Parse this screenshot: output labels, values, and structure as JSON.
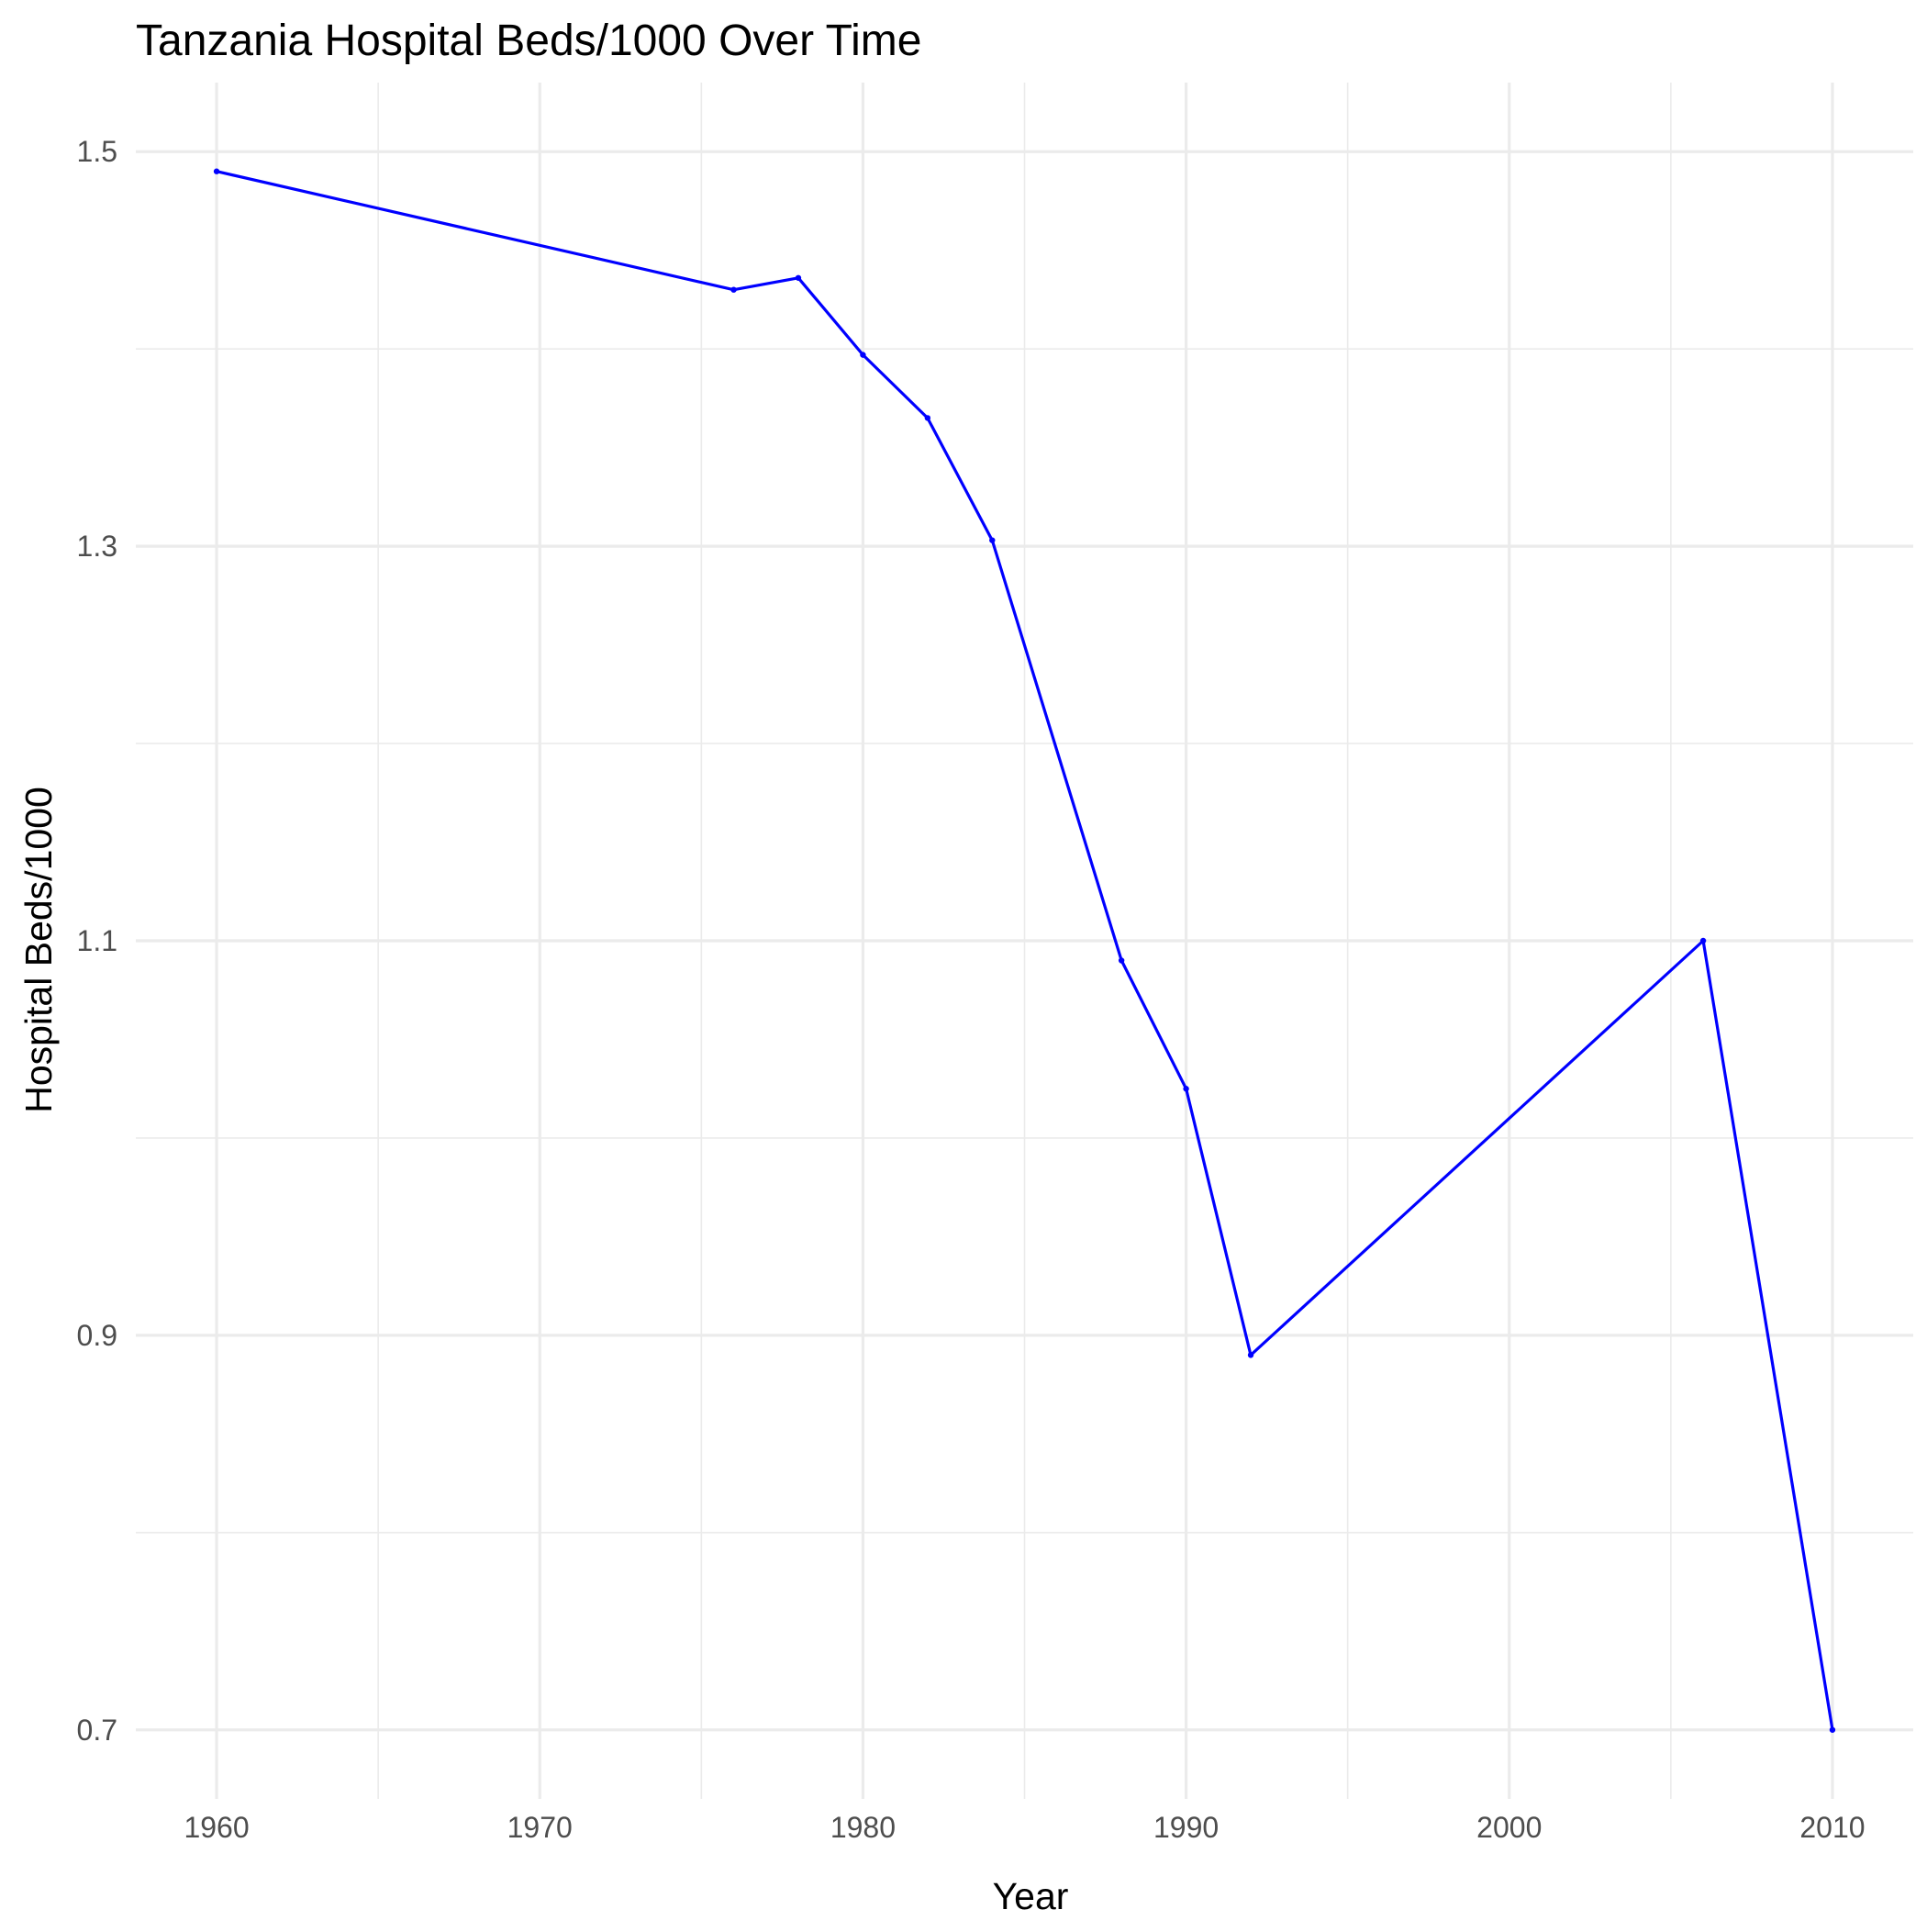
{
  "chart_data": {
    "type": "line",
    "title": "Tanzania Hospital Beds/1000 Over Time",
    "xlabel": "Year",
    "ylabel": "Hospital Beds/1000",
    "xlim": [
      1957.5,
      2012.5
    ],
    "ylim": [
      0.665,
      1.535
    ],
    "x_ticks": [
      1960,
      1970,
      1980,
      1990,
      2000,
      2010
    ],
    "x_tick_labels": [
      "1960",
      "1970",
      "1980",
      "1990",
      "2000",
      "2010"
    ],
    "x_minor_ticks": [
      1965,
      1975,
      1985,
      1995,
      2005
    ],
    "y_ticks": [
      0.7,
      0.9,
      1.1,
      1.3,
      1.5
    ],
    "y_tick_labels": [
      "0.7",
      "0.9",
      "1.1",
      "1.3",
      "1.5"
    ],
    "y_minor_ticks": [
      0.8,
      1.0,
      1.2,
      1.4
    ],
    "grid": true,
    "legend": "none",
    "series": [
      {
        "color": "#0000ff",
        "x": [
          1960,
          1976,
          1978,
          1980,
          1982,
          1984,
          1988,
          1990,
          1992,
          2006,
          2010
        ],
        "values": [
          1.49,
          1.43,
          1.436,
          1.397,
          1.365,
          1.303,
          1.09,
          1.025,
          0.89,
          1.1,
          0.7
        ]
      }
    ]
  }
}
